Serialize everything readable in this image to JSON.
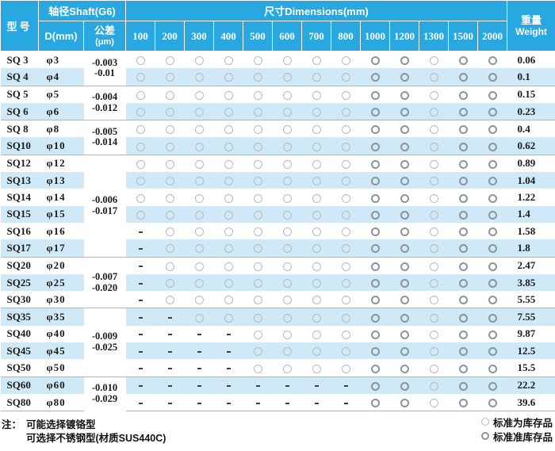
{
  "table": {
    "header": {
      "model": "型号",
      "shaft": "轴径Shaft(G6)",
      "d": "D(mm)",
      "tolerance_cn": "公差",
      "tolerance_unit": "(μm)",
      "dimensions": "尺寸Dimensions(mm)",
      "lengths": [
        "100",
        "200",
        "300",
        "400",
        "500",
        "600",
        "700",
        "800",
        "1000",
        "1200",
        "1300",
        "1500",
        "2000"
      ],
      "weight_cn": "重量",
      "weight_en": "Weight"
    },
    "tolerance_groups": [
      {
        "span": 2,
        "lines": [
          "-0.003",
          "-0.01"
        ]
      },
      {
        "span": 2,
        "lines": [
          "-0.004",
          "-0.012"
        ]
      },
      {
        "span": 2,
        "lines": [
          "-0.005",
          "-0.014"
        ]
      },
      {
        "span": 6,
        "lines": [
          "-0.006",
          "-0.017"
        ]
      },
      {
        "span": 3,
        "lines": [
          "-0.007",
          "-0.020"
        ]
      },
      {
        "span": 4,
        "lines": [
          "-0.009",
          "-0.025"
        ]
      },
      {
        "span": 2,
        "lines": [
          "-0.010",
          "-0.029"
        ]
      }
    ],
    "rows": [
      {
        "model": "SQ 3",
        "dia": "φ3",
        "avail": "ooooooooOOoOO",
        "weight": "0.06"
      },
      {
        "model": "SQ 4",
        "dia": "φ4",
        "avail": "ooooooooOOoOO",
        "weight": "0.1"
      },
      {
        "model": "SQ 5",
        "dia": "φ5",
        "avail": "ooooooooOOoOO",
        "weight": "0.15"
      },
      {
        "model": "SQ 6",
        "dia": "φ6",
        "avail": "ooooooooOOoOO",
        "weight": "0.23"
      },
      {
        "model": "SQ 8",
        "dia": "φ8",
        "avail": "ooooooooOOoOO",
        "weight": "0.4"
      },
      {
        "model": "SQ10",
        "dia": "φ10",
        "avail": "ooooooooOOoOO",
        "weight": "0.62"
      },
      {
        "model": "SQ12",
        "dia": "φ12",
        "avail": "ooooooooOOoOO",
        "weight": "0.89"
      },
      {
        "model": "SQ13",
        "dia": "φ13",
        "avail": "ooooooooOOoOO",
        "weight": "1.04"
      },
      {
        "model": "SQ14",
        "dia": "φ14",
        "avail": "ooooooooOOoOO",
        "weight": "1.22"
      },
      {
        "model": "SQ15",
        "dia": "φ15",
        "avail": "ooooooooOOoOO",
        "weight": "1.4"
      },
      {
        "model": "SQ16",
        "dia": "φ16",
        "avail": "-oooooooOOoOO",
        "weight": "1.58"
      },
      {
        "model": "SQ17",
        "dia": "φ17",
        "avail": "-oooooooOOoOO",
        "weight": "1.8"
      },
      {
        "model": "SQ20",
        "dia": "φ20",
        "avail": "-oooooooOOoOO",
        "weight": "2.47"
      },
      {
        "model": "SQ25",
        "dia": "φ25",
        "avail": "-oooooooOOoOO",
        "weight": "3.85"
      },
      {
        "model": "SQ30",
        "dia": "φ30",
        "avail": "-oooooooOOoOO",
        "weight": "5.55"
      },
      {
        "model": "SQ35",
        "dia": "φ35",
        "avail": "--ooooooOOoOO",
        "weight": "7.55"
      },
      {
        "model": "SQ40",
        "dia": "φ40",
        "avail": "----ooooOOoOO",
        "weight": "9.87"
      },
      {
        "model": "SQ45",
        "dia": "φ45",
        "avail": "----ooooOOoOO",
        "weight": "12.5"
      },
      {
        "model": "SQ50",
        "dia": "φ50",
        "avail": "----ooooOOoOO",
        "weight": "15.5"
      },
      {
        "model": "SQ60",
        "dia": "φ60",
        "avail": "--------OOoOO",
        "weight": "22.2"
      },
      {
        "model": "SQ80",
        "dia": "φ80",
        "avail": "--------OOoOO",
        "weight": "39.6"
      }
    ],
    "symbols": {
      "available": "○",
      "not_available": "-"
    }
  },
  "legend": {
    "items": [
      {
        "label": "标准为库存品"
      },
      {
        "label": "标准准库存品"
      }
    ]
  },
  "notes": {
    "prefix": "注：",
    "line1": "可能选择镀铬型",
    "line2": "可选择不锈钢型(材质SUS440C)"
  },
  "colors": {
    "header_bg": "#29a7e0",
    "stripe_bg": "#cfe9f7",
    "circle_light": "#b3bcc1",
    "circle_bold": "#8b959c",
    "group_line": "#aeb7be"
  }
}
